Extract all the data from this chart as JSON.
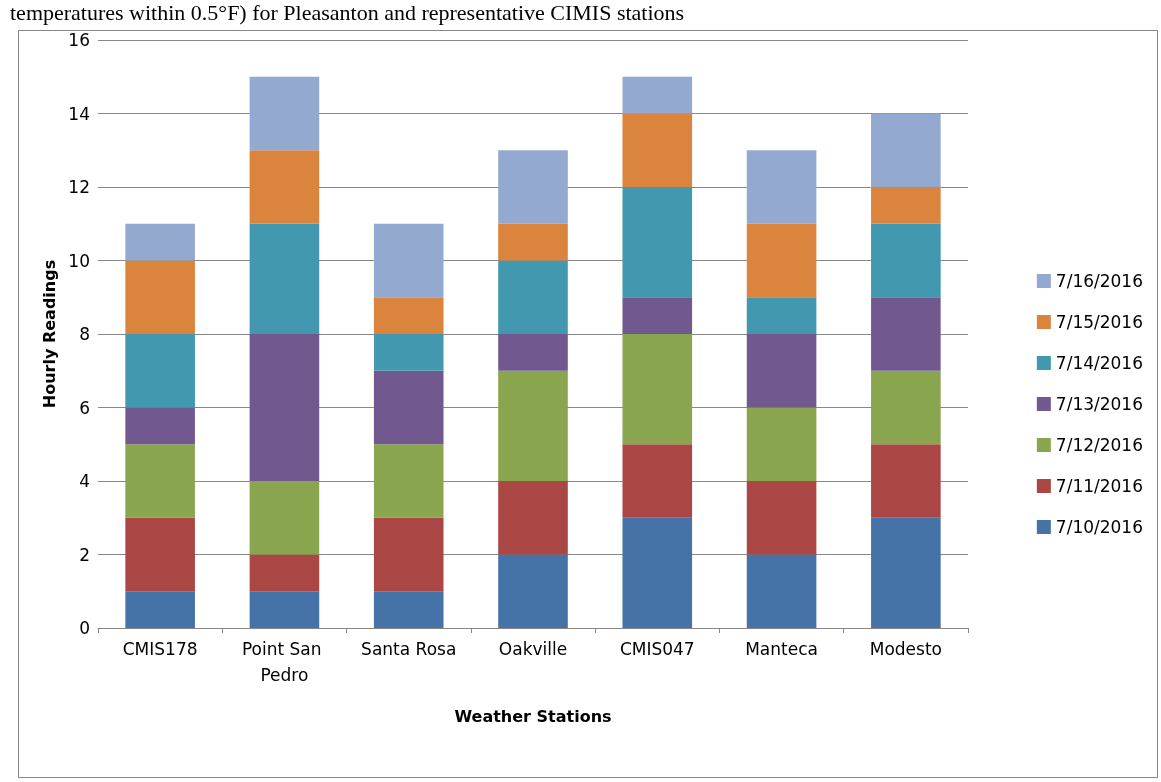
{
  "chart_data": {
    "type": "bar",
    "stacked": true,
    "xlabel": "Weather Stations",
    "ylabel": "Hourly Readings",
    "annotations": [
      "temperatures within 0.5°F) for Pleasanton and representative CIMIS stations"
    ],
    "categories": [
      "CMIS178",
      "Point San Pedro",
      "Santa Rosa",
      "Oakville",
      "CMIS047",
      "Manteca",
      "Modesto"
    ],
    "series": [
      {
        "name": "7/10/2016",
        "color": "#4572a7",
        "values": [
          1,
          1,
          1,
          2,
          3,
          2,
          3
        ]
      },
      {
        "name": "7/11/2016",
        "color": "#aa4643",
        "values": [
          2,
          1,
          2,
          2,
          2,
          2,
          2
        ]
      },
      {
        "name": "7/12/2016",
        "color": "#89a54e",
        "values": [
          2,
          2,
          2,
          3,
          3,
          2,
          2
        ]
      },
      {
        "name": "7/13/2016",
        "color": "#71588f",
        "values": [
          1,
          4,
          2,
          1,
          1,
          2,
          2
        ]
      },
      {
        "name": "7/14/2016",
        "color": "#4198af",
        "values": [
          2,
          3,
          1,
          2,
          3,
          1,
          2
        ]
      },
      {
        "name": "7/15/2016",
        "color": "#db843d",
        "values": [
          2,
          2,
          1,
          1,
          2,
          2,
          1
        ]
      },
      {
        "name": "7/16/2016",
        "color": "#93a9cf",
        "values": [
          1,
          2,
          2,
          2,
          1,
          2,
          2
        ]
      }
    ],
    "ylim": [
      0,
      16
    ],
    "yticks": [
      0,
      2,
      4,
      6,
      8,
      10,
      12,
      14,
      16
    ],
    "grid": "y",
    "legend": "right"
  }
}
